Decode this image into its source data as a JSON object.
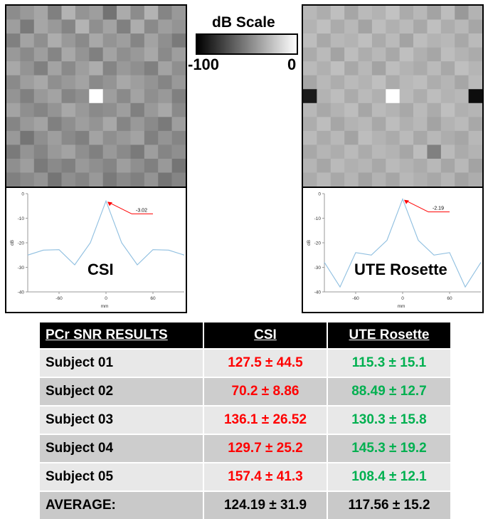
{
  "scale": {
    "title": "dB Scale",
    "min_label": "-100",
    "max_label": "0",
    "min_value": -100,
    "max_value": 0
  },
  "colors": {
    "csi_text": "#ff0000",
    "ute_text": "#00b050",
    "profile_line": "#8fbfe0",
    "annotation_arrow": "#ff0000"
  },
  "chart_data": [
    {
      "type": "heatmap",
      "name": "CSI",
      "grid": 13,
      "values": [
        [
          -45,
          -40,
          -35,
          -50,
          -30,
          -42,
          -38,
          -55,
          -33,
          -45,
          -30,
          -48,
          -40
        ],
        [
          -38,
          -52,
          -35,
          -40,
          -48,
          -30,
          -44,
          -36,
          -50,
          -32,
          -46,
          -38,
          -42
        ],
        [
          -50,
          -36,
          -44,
          -32,
          -40,
          -46,
          -34,
          -42,
          -38,
          -48,
          -36,
          -44,
          -52
        ],
        [
          -40,
          -46,
          -38,
          -48,
          -34,
          -42,
          -50,
          -36,
          -44,
          -40,
          -34,
          -46,
          -38
        ],
        [
          -34,
          -42,
          -50,
          -36,
          -46,
          -38,
          -32,
          -48,
          -40,
          -44,
          -50,
          -36,
          -44
        ],
        [
          -46,
          -38,
          -34,
          -44,
          -40,
          -36,
          -46,
          -42,
          -34,
          -38,
          -42,
          -48,
          -40
        ],
        [
          -42,
          -50,
          -40,
          -36,
          -48,
          -44,
          0,
          -38,
          -46,
          -36,
          -44,
          -40,
          -50
        ],
        [
          -36,
          -44,
          -48,
          -42,
          -34,
          -40,
          -46,
          -44,
          -38,
          -50,
          -40,
          -34,
          -46
        ],
        [
          -48,
          -40,
          -36,
          -50,
          -44,
          -38,
          -42,
          -34,
          -48,
          -40,
          -46,
          -52,
          -38
        ],
        [
          -40,
          -54,
          -44,
          -38,
          -46,
          -50,
          -36,
          -44,
          -40,
          -36,
          -50,
          -42,
          -48
        ],
        [
          -52,
          -42,
          -48,
          -40,
          -36,
          -44,
          -50,
          -40,
          -46,
          -52,
          -38,
          -48,
          -44
        ],
        [
          -44,
          -38,
          -52,
          -46,
          -50,
          -40,
          -44,
          -48,
          -38,
          -44,
          -50,
          -40,
          -54
        ],
        [
          -50,
          -46,
          -42,
          -54,
          -44,
          -48,
          -40,
          -52,
          -46,
          -50,
          -42,
          -54,
          -48
        ]
      ]
    },
    {
      "type": "heatmap",
      "name": "UTE Rosette",
      "grid": 13,
      "values": [
        [
          -28,
          -32,
          -25,
          -35,
          -27,
          -30,
          -24,
          -33,
          -28,
          -36,
          -26,
          -40,
          -30
        ],
        [
          -30,
          -25,
          -33,
          -28,
          -36,
          -26,
          -31,
          -27,
          -34,
          -25,
          -32,
          -28,
          -35
        ],
        [
          -26,
          -34,
          -28,
          -30,
          -25,
          -33,
          -27,
          -36,
          -26,
          -30,
          -28,
          -34,
          -27
        ],
        [
          -33,
          -27,
          -36,
          -26,
          -32,
          -28,
          -34,
          -25,
          -31,
          -35,
          -26,
          -30,
          -33
        ],
        [
          -27,
          -31,
          -25,
          -34,
          -28,
          -36,
          -26,
          -30,
          -33,
          -27,
          -34,
          -25,
          -29
        ],
        [
          -35,
          -28,
          -32,
          -27,
          -30,
          -25,
          -33,
          -28,
          -26,
          -32,
          -29,
          -35,
          -27
        ],
        [
          -90,
          -30,
          -26,
          -33,
          -27,
          -31,
          0,
          -27,
          -32,
          -26,
          -30,
          -28,
          -95
        ],
        [
          -28,
          -34,
          -30,
          -26,
          -35,
          -27,
          -30,
          -34,
          -27,
          -33,
          -25,
          -31,
          -29
        ],
        [
          -32,
          -26,
          -35,
          -30,
          -28,
          -34,
          -26,
          -31,
          -28,
          -36,
          -30,
          -27,
          -34
        ],
        [
          -27,
          -33,
          -28,
          -36,
          -26,
          -30,
          -33,
          -27,
          -34,
          -28,
          -32,
          -35,
          -28
        ],
        [
          -34,
          -29,
          -32,
          -27,
          -33,
          -28,
          -30,
          -35,
          -26,
          -50,
          -27,
          -33,
          -30
        ],
        [
          -29,
          -35,
          -27,
          -31,
          -29,
          -34,
          -27,
          -30,
          -33,
          -28,
          -35,
          -28,
          -36
        ],
        [
          -33,
          -28,
          -34,
          -29,
          -36,
          -30,
          -35,
          -28,
          -31,
          -34,
          -29,
          -36,
          -32
        ]
      ]
    },
    {
      "type": "line",
      "name": "CSI",
      "xlabel": "mm",
      "ylabel": "dB",
      "xlim": [
        -100,
        100
      ],
      "ylim": [
        -40,
        0
      ],
      "xticks": [
        "-60",
        "0",
        "60"
      ],
      "yticks": [
        "0",
        "-10",
        "-20",
        "-30",
        "-40"
      ],
      "x": [
        -100,
        -80,
        -60,
        -40,
        -20,
        0,
        20,
        40,
        60,
        80,
        100
      ],
      "y": [
        -25,
        -23,
        -22.8,
        -29,
        -20,
        -3,
        -20,
        -29,
        -22.8,
        -23,
        -25
      ],
      "annotation": "-3.02"
    },
    {
      "type": "line",
      "name": "UTE Rosette",
      "xlabel": "mm",
      "ylabel": "dB",
      "xlim": [
        -100,
        100
      ],
      "ylim": [
        -40,
        0
      ],
      "xticks": [
        "-60",
        "0",
        "60"
      ],
      "yticks": [
        "0",
        "-10",
        "-20",
        "-30",
        "-40"
      ],
      "x": [
        -100,
        -80,
        -60,
        -40,
        -20,
        0,
        20,
        40,
        60,
        80,
        100
      ],
      "y": [
        -28,
        -38,
        -24,
        -25,
        -19,
        -2.2,
        -19,
        -25,
        -24,
        -38,
        -28
      ],
      "annotation": "-2.19"
    }
  ],
  "labels": {
    "csi": "CSI",
    "ute": "UTE Rosette"
  },
  "table": {
    "headers": [
      "PCr SNR RESULTS",
      "CSI",
      "UTE Rosette"
    ],
    "rows": [
      {
        "subject": "Subject 01",
        "csi": "127.5 ± 44.5",
        "ute": "115.3 ± 15.1"
      },
      {
        "subject": "Subject 02",
        "csi": "70.2 ± 8.86",
        "ute": "88.49 ± 12.7"
      },
      {
        "subject": "Subject 03",
        "csi": "136.1 ± 26.52",
        "ute": "130.3 ± 15.8"
      },
      {
        "subject": "Subject 04",
        "csi": "129.7 ± 25.2",
        "ute": "145.3 ± 19.2"
      },
      {
        "subject": "Subject 05",
        "csi": "157.4 ± 41.3",
        "ute": "108.4 ± 12.1"
      }
    ],
    "average": {
      "subject": "AVERAGE:",
      "csi": "124.19 ± 31.9",
      "ute": "117.56 ± 15.2"
    }
  }
}
